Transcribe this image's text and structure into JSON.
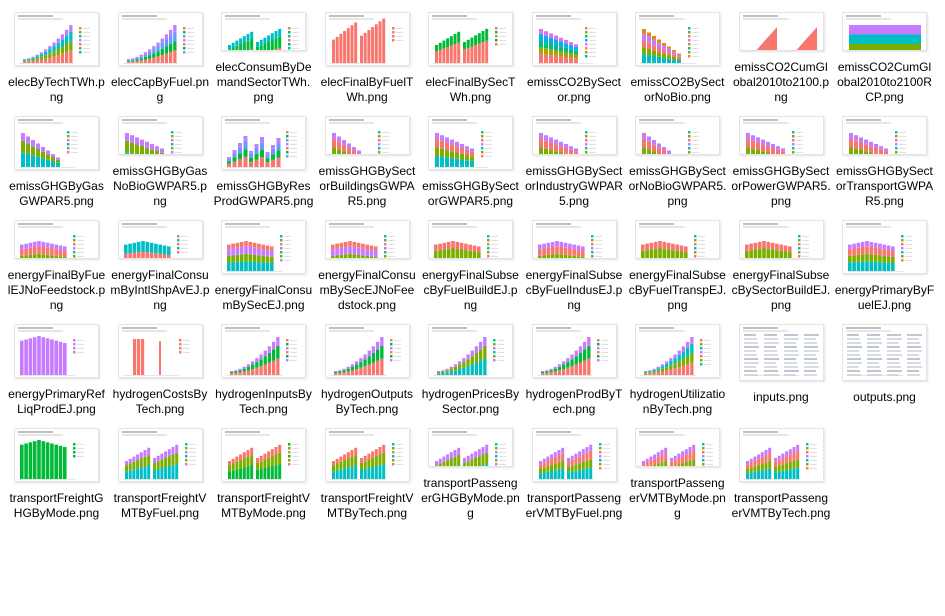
{
  "window": {
    "title": ""
  },
  "files": [
    {
      "name": "elecByTechTWh.png",
      "icon": "file-thumbnail-icon",
      "style": "steps",
      "colors": [
        "#f8766d",
        "#7cae00",
        "#00bfc4",
        "#c77cff"
      ]
    },
    {
      "name": "elecCapByFuel.png",
      "icon": "file-thumbnail-icon",
      "style": "steps",
      "colors": [
        "#f8766d",
        "#00ba38",
        "#619cff",
        "#c77cff"
      ]
    },
    {
      "name": "elecConsumByDemandSectorTWh.png",
      "icon": "file-thumbnail-icon",
      "style": "twin",
      "colors": [
        "#f8766d",
        "#00ba38",
        "#00bfc4"
      ]
    },
    {
      "name": "elecFinalByFuelTWh.png",
      "icon": "file-thumbnail-icon",
      "style": "twin-single",
      "colors": [
        "#f8766d"
      ]
    },
    {
      "name": "elecFinalBySecTWh.png",
      "icon": "file-thumbnail-icon",
      "style": "twin",
      "colors": [
        "#f8766d",
        "#00ba38"
      ]
    },
    {
      "name": "emissCO2BySector.png",
      "icon": "file-thumbnail-icon",
      "style": "bars-legend",
      "colors": [
        "#f8766d",
        "#a3a500",
        "#00bf7d",
        "#00b0f6",
        "#e76bf3"
      ]
    },
    {
      "name": "emissCO2BySectorNoBio.png",
      "icon": "file-thumbnail-icon",
      "style": "bars-legend",
      "colors": [
        "#00bfc4",
        "#7cae00",
        "#f8766d",
        "#c77cff",
        "#e68613"
      ]
    },
    {
      "name": "emissCO2CumGlobal2010to2100.png",
      "icon": "file-thumbnail-icon",
      "style": "wedge",
      "colors": [
        "#f8766d"
      ]
    },
    {
      "name": "emissCO2CumGlobal2010to2100RCP.png",
      "icon": "file-thumbnail-icon",
      "style": "stacked",
      "colors": [
        "#c77cff",
        "#00bfc4",
        "#7cae00",
        "#f8766d"
      ]
    },
    {
      "name": "emissGHGByGasGWPAR5.png",
      "icon": "file-thumbnail-icon",
      "style": "bars-legend",
      "colors": [
        "#00bfc4",
        "#7cae00",
        "#c77cff"
      ]
    },
    {
      "name": "emissGHGByGasNoBioGWPAR5.png",
      "icon": "file-thumbnail-icon",
      "style": "bars-legend",
      "colors": [
        "#00bfc4",
        "#7cae00",
        "#c77cff"
      ]
    },
    {
      "name": "emissGHGByResProdGWPAR5.png",
      "icon": "file-thumbnail-icon",
      "style": "mixed",
      "colors": [
        "#f8766d",
        "#00ba38",
        "#619cff",
        "#c77cff"
      ]
    },
    {
      "name": "emissGHGBySectorBuildingsGWPAR5.png",
      "icon": "file-thumbnail-icon",
      "style": "bars-legend",
      "colors": [
        "#00bfc4",
        "#7cae00",
        "#f8766d",
        "#c77cff"
      ]
    },
    {
      "name": "emissGHGBySectorGWPAR5.png",
      "icon": "file-thumbnail-icon",
      "style": "bars-legend",
      "colors": [
        "#00bfc4",
        "#7cae00",
        "#f8766d",
        "#c77cff"
      ]
    },
    {
      "name": "emissGHGBySectorIndustryGWPAR5.png",
      "icon": "file-thumbnail-icon",
      "style": "bars-legend",
      "colors": [
        "#00bfc4",
        "#7cae00",
        "#f8766d",
        "#c77cff"
      ]
    },
    {
      "name": "emissGHGBySectorNoBioGWPAR5.png",
      "icon": "file-thumbnail-icon",
      "style": "bars-legend",
      "colors": [
        "#00bfc4",
        "#7cae00",
        "#f8766d",
        "#c77cff"
      ]
    },
    {
      "name": "emissGHGBySectorPowerGWPAR5.png",
      "icon": "file-thumbnail-icon",
      "style": "bars-legend",
      "colors": [
        "#00bfc4",
        "#7cae00",
        "#f8766d",
        "#c77cff"
      ]
    },
    {
      "name": "emissGHGBySectorTransportGWPAR5.png",
      "icon": "file-thumbnail-icon",
      "style": "bars-legend",
      "colors": [
        "#00bfc4",
        "#7cae00",
        "#f8766d",
        "#c77cff"
      ]
    },
    {
      "name": "energyFinalByFuelEJNoFeedstock.png",
      "icon": "file-thumbnail-icon",
      "style": "flat",
      "colors": [
        "#00bfc4",
        "#7cae00",
        "#f8766d",
        "#c77cff"
      ]
    },
    {
      "name": "energyFinalConsumByIntlShpAvEJ.png",
      "icon": "file-thumbnail-icon",
      "style": "flat",
      "colors": [
        "#f8766d",
        "#00bfc4"
      ]
    },
    {
      "name": "energyFinalConsumBySecEJ.png",
      "icon": "file-thumbnail-icon",
      "style": "flat",
      "colors": [
        "#00bfc4",
        "#7cae00",
        "#c77cff",
        "#f8766d"
      ]
    },
    {
      "name": "energyFinalConsumBySecEJNoFeedstock.png",
      "icon": "file-thumbnail-icon",
      "style": "flat",
      "colors": [
        "#00bfc4",
        "#7cae00",
        "#c77cff",
        "#f8766d"
      ]
    },
    {
      "name": "energyFinalSubsecByFuelBuildEJ.png",
      "icon": "file-thumbnail-icon",
      "style": "flat",
      "colors": [
        "#00bfc4",
        "#7cae00",
        "#f8766d"
      ]
    },
    {
      "name": "energyFinalSubsecByFuelIndusEJ.png",
      "icon": "file-thumbnail-icon",
      "style": "flat",
      "colors": [
        "#00bfc4",
        "#7cae00",
        "#f8766d",
        "#c77cff"
      ]
    },
    {
      "name": "energyFinalSubsecByFuelTranspEJ.png",
      "icon": "file-thumbnail-icon",
      "style": "flat",
      "colors": [
        "#00bfc4",
        "#7cae00",
        "#f8766d"
      ]
    },
    {
      "name": "energyFinalSubsecBySectorBuildEJ.png",
      "icon": "file-thumbnail-icon",
      "style": "flat",
      "colors": [
        "#00bfc4",
        "#7cae00",
        "#f8766d"
      ]
    },
    {
      "name": "energyPrimaryByFuelEJ.png",
      "icon": "file-thumbnail-icon",
      "style": "flat",
      "colors": [
        "#00bfc4",
        "#7cae00",
        "#f8766d",
        "#c77cff"
      ]
    },
    {
      "name": "energyPrimaryRefLiqProdEJ.png",
      "icon": "file-thumbnail-icon",
      "style": "flat",
      "colors": [
        "#c77cff"
      ]
    },
    {
      "name": "hydrogenCostsByTech.png",
      "icon": "file-thumbnail-icon",
      "style": "spike",
      "colors": [
        "#f8766d"
      ]
    },
    {
      "name": "hydrogenInputsByTech.png",
      "icon": "file-thumbnail-icon",
      "style": "steps",
      "colors": [
        "#f8766d",
        "#00ba38",
        "#c77cff"
      ]
    },
    {
      "name": "hydrogenOutputsByTech.png",
      "icon": "file-thumbnail-icon",
      "style": "steps",
      "colors": [
        "#f8766d",
        "#00ba38",
        "#c77cff"
      ]
    },
    {
      "name": "hydrogenPricesBySector.png",
      "icon": "file-thumbnail-icon",
      "style": "steps",
      "colors": [
        "#00bfc4",
        "#7cae00",
        "#c77cff"
      ]
    },
    {
      "name": "hydrogenProdByTech.png",
      "icon": "file-thumbnail-icon",
      "style": "steps",
      "colors": [
        "#f8766d",
        "#00ba38",
        "#c77cff"
      ]
    },
    {
      "name": "hydrogenUtilizationByTech.png",
      "icon": "file-thumbnail-icon",
      "style": "steps",
      "colors": [
        "#f8766d",
        "#7cae00",
        "#00bfc4",
        "#c77cff"
      ]
    },
    {
      "name": "inputs.png",
      "icon": "file-thumbnail-icon",
      "style": "table",
      "colors": [
        "#f8766d",
        "#00ba38",
        "#619cff"
      ]
    },
    {
      "name": "outputs.png",
      "icon": "file-thumbnail-icon",
      "style": "table",
      "colors": [
        "#f8766d",
        "#00ba38",
        "#619cff"
      ]
    },
    {
      "name": "transportFreightGHGByMode.png",
      "icon": "file-thumbnail-icon",
      "style": "flat",
      "colors": [
        "#00ba38"
      ]
    },
    {
      "name": "transportFreightVMTByFuel.png",
      "icon": "file-thumbnail-icon",
      "style": "twin",
      "colors": [
        "#00bfc4",
        "#7cae00",
        "#c77cff"
      ]
    },
    {
      "name": "transportFreightVMTByMode.png",
      "icon": "file-thumbnail-icon",
      "style": "twin",
      "colors": [
        "#00ba38",
        "#7cae00",
        "#f8766d"
      ]
    },
    {
      "name": "transportFreightVMTByTech.png",
      "icon": "file-thumbnail-icon",
      "style": "twin",
      "colors": [
        "#00bfc4",
        "#7cae00",
        "#f8766d"
      ]
    },
    {
      "name": "transportPassengerGHGByMode.png",
      "icon": "file-thumbnail-icon",
      "style": "twin",
      "colors": [
        "#00bfc4",
        "#7cae00",
        "#c77cff"
      ]
    },
    {
      "name": "transportPassengerVMTByFuel.png",
      "icon": "file-thumbnail-icon",
      "style": "twin",
      "colors": [
        "#00bfc4",
        "#7cae00",
        "#f8766d",
        "#c77cff"
      ]
    },
    {
      "name": "transportPassengerVMTByMode.png",
      "icon": "file-thumbnail-icon",
      "style": "twin",
      "colors": [
        "#00bfc4",
        "#7cae00",
        "#f8766d",
        "#c77cff"
      ]
    },
    {
      "name": "transportPassengerVMTByTech.png",
      "icon": "file-thumbnail-icon",
      "style": "twin",
      "colors": [
        "#00bfc4",
        "#7cae00",
        "#f8766d",
        "#c77cff"
      ]
    }
  ]
}
